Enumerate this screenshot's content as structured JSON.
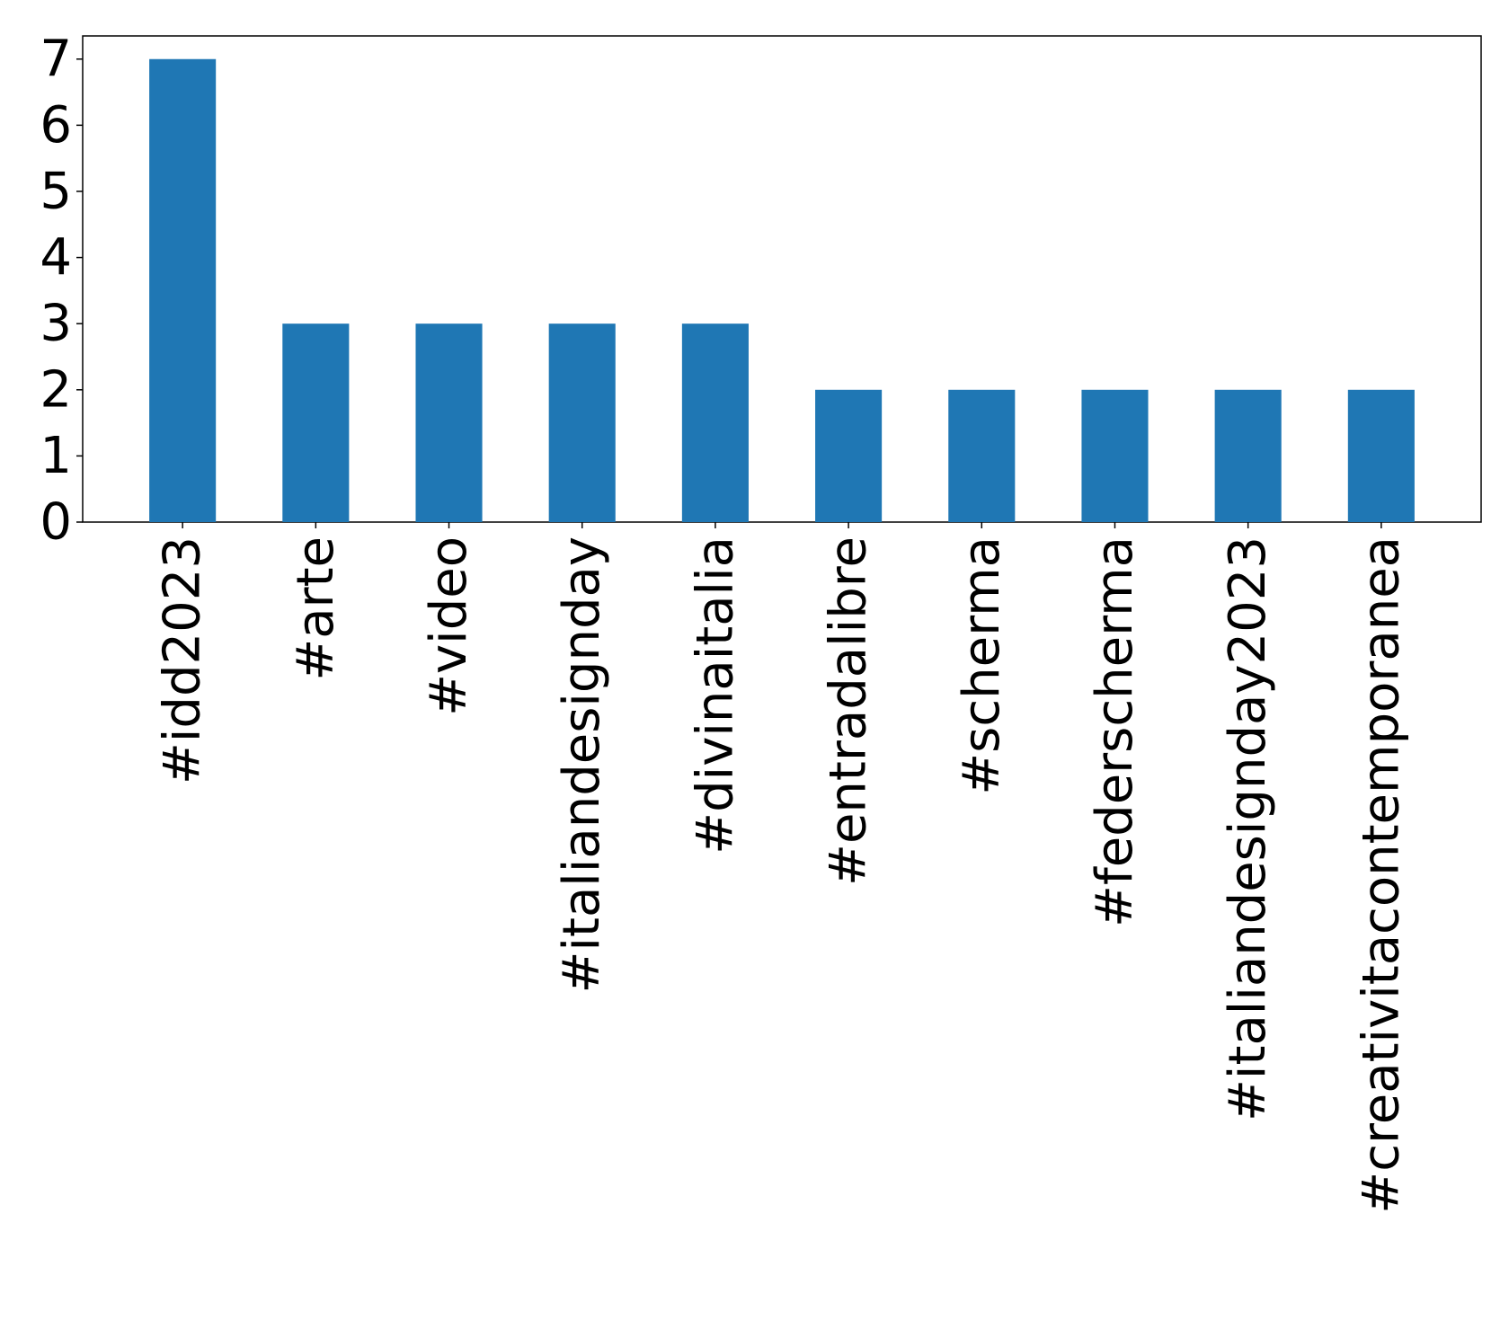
{
  "chart_data": {
    "type": "bar",
    "title": "",
    "xlabel": "",
    "ylabel": "",
    "categories": [
      "#idd2023",
      "#arte",
      "#video",
      "#italiandesignday",
      "#divinaitalia",
      "#entradalibre",
      "#scherma",
      "#federscherma",
      "#italiandesignday2023",
      "#creativitacontemporanea"
    ],
    "values": [
      7,
      3,
      3,
      3,
      3,
      2,
      2,
      2,
      2,
      2
    ],
    "ylim": [
      0,
      7.35
    ],
    "yticks": [
      "0",
      "1",
      "2",
      "3",
      "4",
      "5",
      "6",
      "7"
    ],
    "bar_color": "#1f77b4",
    "grid": false,
    "legend": "none"
  }
}
